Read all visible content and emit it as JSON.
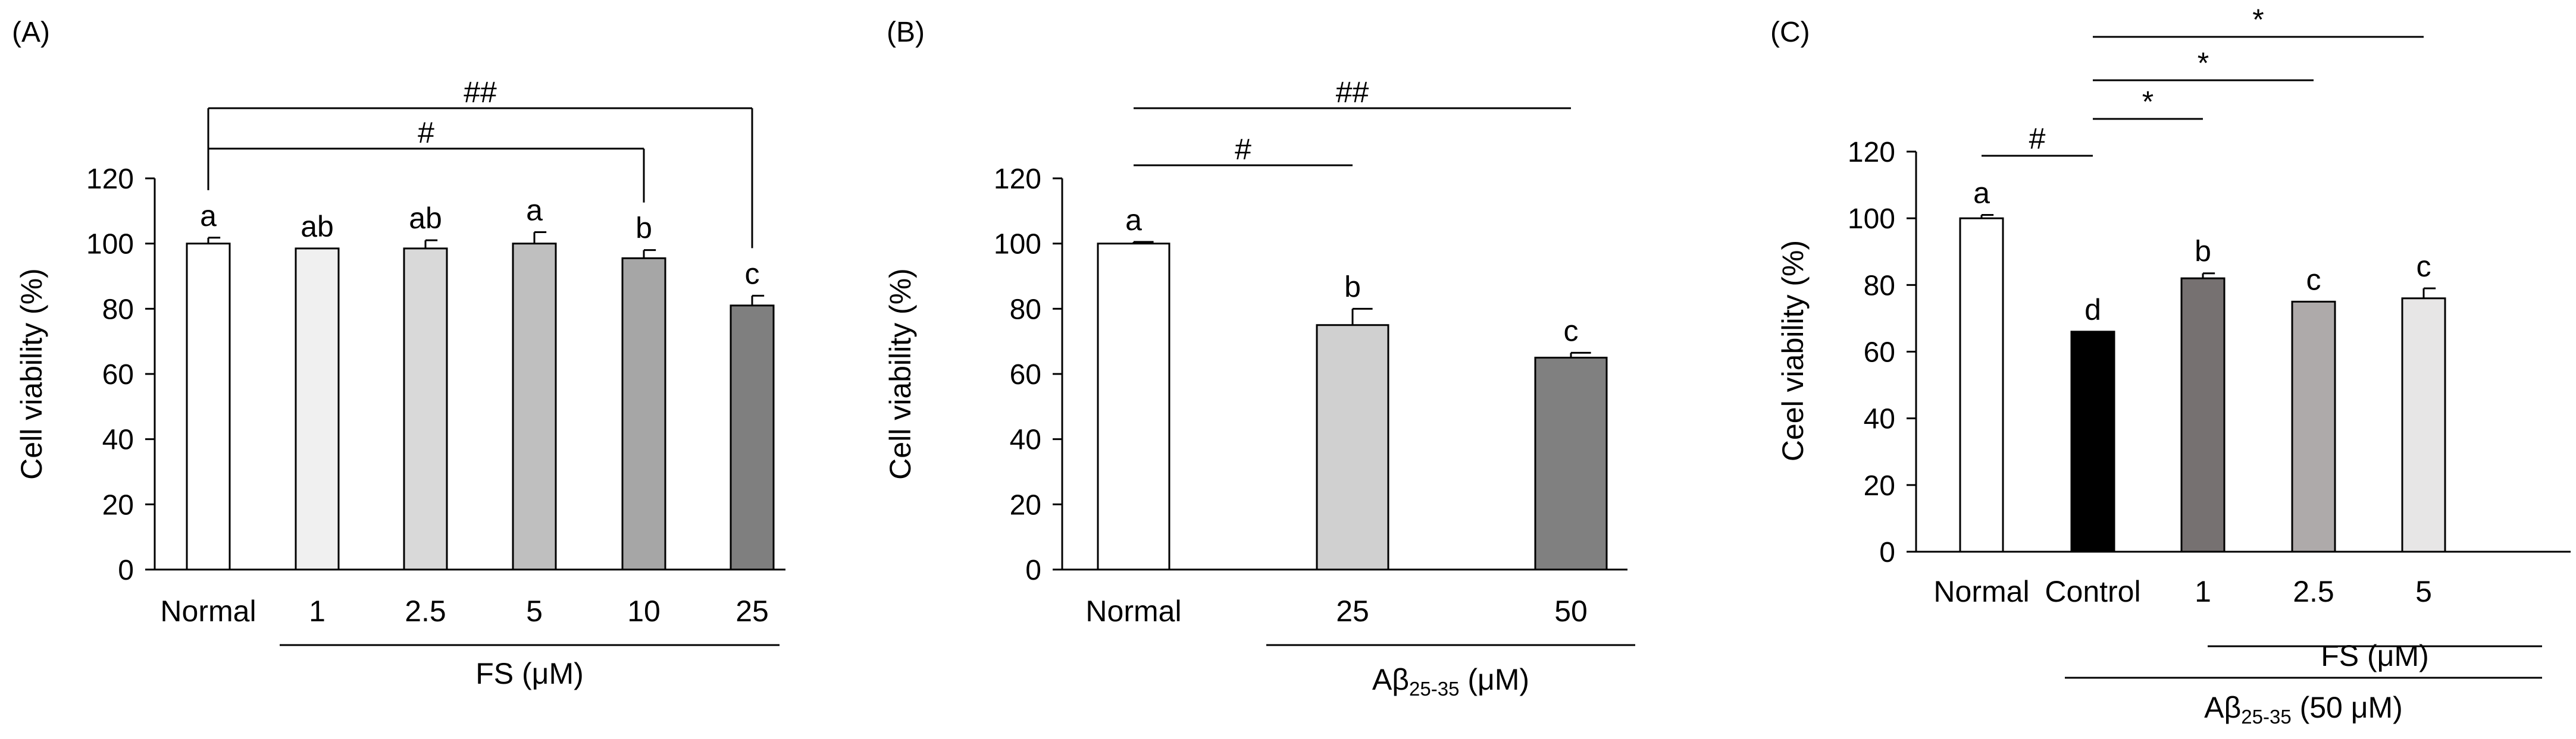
{
  "chart_data": [
    {
      "type": "bar",
      "panel_label": "(A)",
      "ylabel": "Cell viability (%)",
      "ylim": [
        0,
        120
      ],
      "yticks": [
        "0",
        "20",
        "40",
        "60",
        "80",
        "100",
        "120"
      ],
      "categories": [
        "Normal",
        "1",
        "2.5",
        "5",
        "10",
        "25"
      ],
      "values": [
        100,
        98.5,
        98.5,
        100,
        95.5,
        81
      ],
      "errors": [
        1.8,
        0,
        2.5,
        3.5,
        2.5,
        3
      ],
      "letters": [
        "a",
        "ab",
        "ab",
        "a",
        "b",
        "c"
      ],
      "colors": [
        "#ffffff",
        "#f0f0f0",
        "#d9d9d9",
        "#bfbfbf",
        "#a6a6a6",
        "#7f7f7f"
      ],
      "group_label": "FS (μM)",
      "group_label_unit": "",
      "group_label_main": "",
      "group_label_sub": "",
      "significance": [
        {
          "label": "#",
          "from": 0,
          "to": 4
        },
        {
          "label": "##",
          "from": 0,
          "to": 5
        }
      ]
    },
    {
      "type": "bar",
      "panel_label": "(B)",
      "ylabel": "Cell viability (%)",
      "ylim": [
        0,
        120
      ],
      "yticks": [
        "0",
        "20",
        "40",
        "60",
        "80",
        "100",
        "120"
      ],
      "categories": [
        "Normal",
        "25",
        "50"
      ],
      "values": [
        100,
        75,
        65
      ],
      "errors": [
        0.5,
        5,
        1.5
      ],
      "letters": [
        "a",
        "b",
        "c"
      ],
      "colors": [
        "#ffffff",
        "#d0d0d0",
        "#808080"
      ],
      "group_label_main": "Aβ",
      "group_label_sub": "25-35",
      "group_label_unit": " (μM)",
      "significance": [
        {
          "label": "#",
          "from": 0,
          "to": 1
        },
        {
          "label": "##",
          "from": 0,
          "to": 2
        }
      ]
    },
    {
      "type": "bar",
      "panel_label": "(C)",
      "ylabel": "Ceel viability (%)",
      "ylim": [
        0,
        120
      ],
      "yticks": [
        "0",
        "20",
        "40",
        "60",
        "80",
        "100",
        "120"
      ],
      "categories": [
        "Normal",
        "Control",
        "1",
        "2.5",
        "5"
      ],
      "values": [
        100,
        66,
        82,
        75,
        76
      ],
      "errors": [
        1,
        0,
        1.5,
        0,
        3
      ],
      "letters": [
        "a",
        "d",
        "b",
        "c",
        "c"
      ],
      "colors": [
        "#ffffff",
        "#000000",
        "#767171",
        "#aeaaaa",
        "#e7e6e6"
      ],
      "group_label": "FS (μM)",
      "group_label_main": "Aβ",
      "group_label_sub": "25-35",
      "group_label_unit": " (50 μM)",
      "significance": [
        {
          "label": "#",
          "from": 0,
          "to": 1
        },
        {
          "label": "*",
          "from": 1,
          "to": 2
        },
        {
          "label": "*",
          "from": 1,
          "to": 3
        },
        {
          "label": "*",
          "from": 1,
          "to": 4
        }
      ]
    }
  ]
}
